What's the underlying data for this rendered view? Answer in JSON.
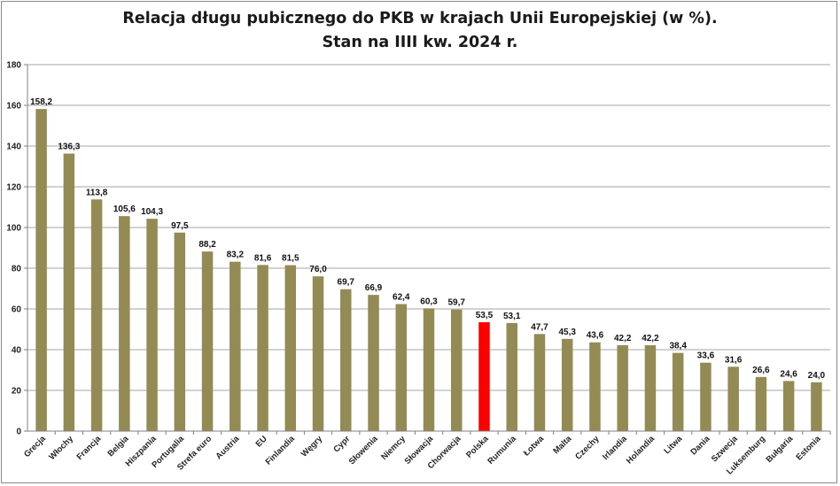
{
  "chart_data": {
    "type": "bar",
    "title_line1": "Relacja długu pubicznego do PKB w krajach Unii Europejskiej (w %).",
    "title_line2": "Stan na IIII kw. 2024 r.",
    "xlabel": "",
    "ylabel": "",
    "ylim": [
      0,
      180
    ],
    "yticks": [
      0,
      20,
      40,
      60,
      80,
      100,
      120,
      140,
      160,
      180
    ],
    "grid": true,
    "legend": "none",
    "colors": {
      "bar": "#948a54",
      "highlight": "#ff0000",
      "grid": "#a6a6a6",
      "axis": "#808080"
    },
    "highlight_category": "Polska",
    "categories": [
      "Grecja",
      "Włochy",
      "Francja",
      "Belgia",
      "Hiszpania",
      "Portugalia",
      "Strefa euro",
      "Austria",
      "EU",
      "Finlandia",
      "Węgry",
      "Cypr",
      "Słowenia",
      "Niemcy",
      "Słowacja",
      "Chorwacja",
      "Polska",
      "Rumunia",
      "Łotwa",
      "Malta",
      "Czechy",
      "Irlandia",
      "Holandia",
      "Litwa",
      "Dania",
      "Szwecja",
      "Luksemburg",
      "Bułgaria",
      "Estonia"
    ],
    "values": [
      158.2,
      136.3,
      113.8,
      105.6,
      104.3,
      97.5,
      88.2,
      83.2,
      81.6,
      81.5,
      76.0,
      69.7,
      66.9,
      62.4,
      60.3,
      59.7,
      53.5,
      53.1,
      47.7,
      45.3,
      43.6,
      42.2,
      42.2,
      38.4,
      33.6,
      31.6,
      26.6,
      24.6,
      24.0
    ],
    "value_labels": [
      "158,2",
      "136,3",
      "113,8",
      "105,6",
      "104,3",
      "97,5",
      "88,2",
      "83,2",
      "81,6",
      "81,5",
      "76,0",
      "69,7",
      "66,9",
      "62,4",
      "60,3",
      "59,7",
      "53,5",
      "53,1",
      "47,7",
      "45,3",
      "43,6",
      "42,2",
      "42,2",
      "38,4",
      "33,6",
      "31,6",
      "26,6",
      "24,6",
      "24,0"
    ]
  }
}
